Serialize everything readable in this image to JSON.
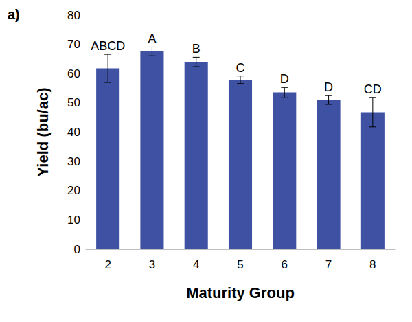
{
  "chart_data": {
    "type": "bar",
    "title": "a)",
    "x_label": "Maturity Group",
    "y_label": "Yield (bu/ac)",
    "categories": [
      "2",
      "3",
      "4",
      "5",
      "6",
      "7",
      "8"
    ],
    "values": [
      61.8,
      67.6,
      64.0,
      57.9,
      53.6,
      51.0,
      46.8
    ],
    "errors": [
      4.8,
      1.5,
      1.6,
      1.3,
      1.7,
      1.5,
      5.0
    ],
    "annotations": [
      "ABCD",
      "A",
      "B",
      "C",
      "D",
      "D",
      "CD"
    ],
    "color": "#3f51a3",
    "ylim": [
      0,
      80
    ],
    "yticks": [
      0,
      10,
      20,
      30,
      40,
      50,
      60,
      70,
      80
    ],
    "grid": false
  }
}
